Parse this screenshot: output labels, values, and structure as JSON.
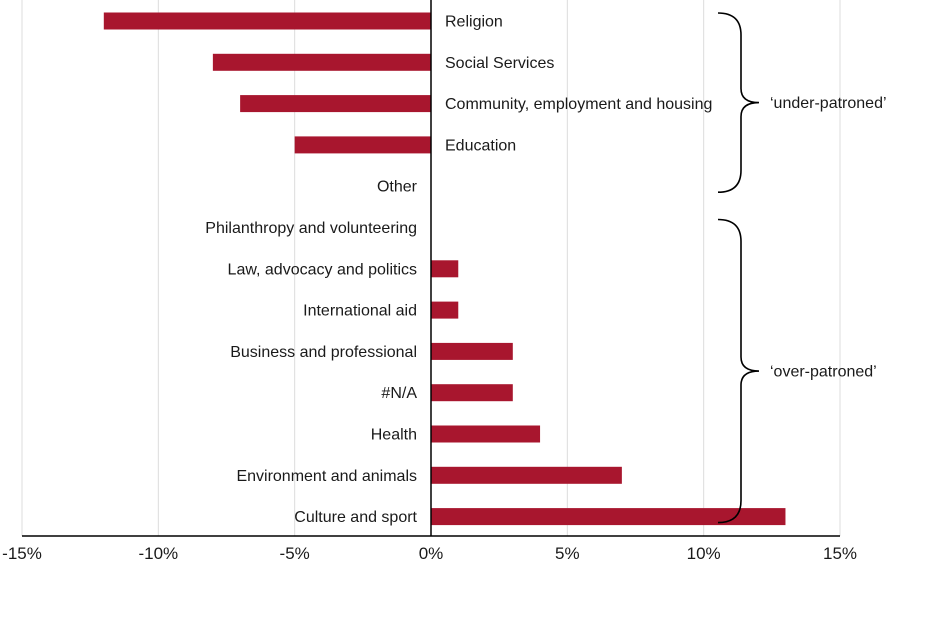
{
  "chart_data": {
    "type": "bar",
    "orientation": "horizontal",
    "bar_color": "#a8162e",
    "grid": true,
    "xlim": [
      -15,
      15
    ],
    "x_ticks": [
      -15,
      -10,
      -5,
      0,
      5,
      10,
      15
    ],
    "x_tick_labels": [
      "-15%",
      "-10%",
      "-5%",
      "0%",
      "5%",
      "10%",
      "15%"
    ],
    "categories": [
      "Religion",
      "Social Services",
      "Community, employment and housing",
      "Education",
      "Other",
      "Philanthropy and volunteering",
      "Law, advocacy and politics",
      "International aid",
      "Business and professional",
      "#N/A",
      "Health",
      "Environment and animals",
      "Culture and sport"
    ],
    "values": [
      -12,
      -8,
      -7,
      -5,
      0,
      0,
      1,
      1,
      3,
      3,
      4,
      7,
      13
    ],
    "annotations": [
      {
        "label": "‘under-patroned’",
        "from_category": 0,
        "to_category": 4
      },
      {
        "label": "‘over-patroned’",
        "from_category": 5,
        "to_category": 12
      }
    ]
  }
}
